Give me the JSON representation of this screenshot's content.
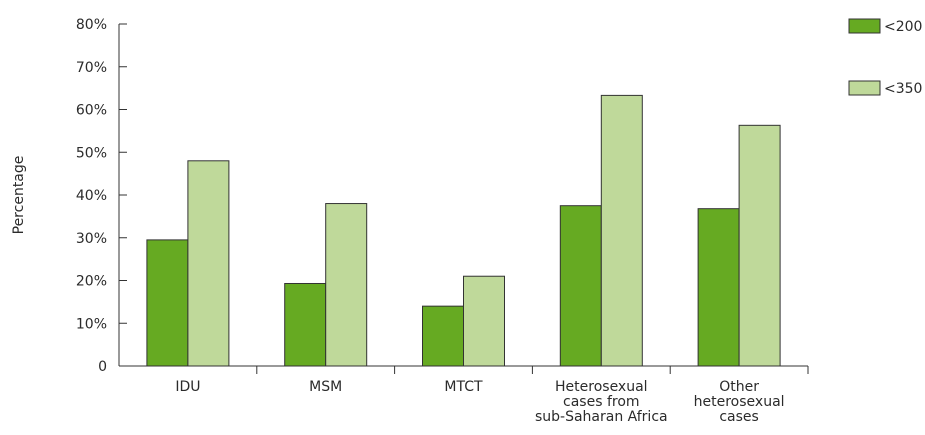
{
  "chart_data": {
    "type": "bar",
    "title": "",
    "xlabel": "",
    "ylabel": "Percentage",
    "ylim": [
      0,
      80
    ],
    "yticks": [
      {
        "value": 0,
        "label": "0"
      },
      {
        "value": 10,
        "label": "10%"
      },
      {
        "value": 20,
        "label": "20%"
      },
      {
        "value": 30,
        "label": "30%"
      },
      {
        "value": 40,
        "label": "40%"
      },
      {
        "value": 50,
        "label": "50%"
      },
      {
        "value": 60,
        "label": "60%"
      },
      {
        "value": 70,
        "label": "70%"
      },
      {
        "value": 80,
        "label": "80%"
      }
    ],
    "categories": [
      [
        "IDU"
      ],
      [
        "MSM"
      ],
      [
        "MTCT"
      ],
      [
        "Heterosexual",
        "cases from",
        "sub-Saharan Africa"
      ],
      [
        "Other",
        "heterosexual",
        "cases"
      ]
    ],
    "series": [
      {
        "name": "<200",
        "color": "#66aa22",
        "values": [
          29.5,
          19.3,
          14,
          37.5,
          36.8
        ]
      },
      {
        "name": "<350",
        "color": "#bfd99a",
        "values": [
          48,
          38,
          21,
          63.3,
          56.3
        ]
      }
    ],
    "grid": false,
    "legend": "top-right"
  }
}
